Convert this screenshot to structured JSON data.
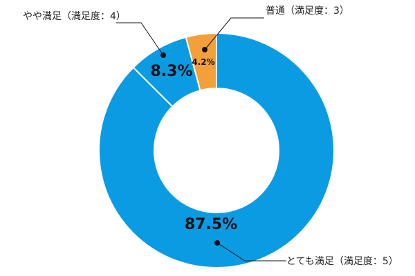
{
  "chart_data": {
    "type": "pie",
    "donut": true,
    "legend": "none",
    "start_angle_deg": 0,
    "direction": "clockwise",
    "slices": [
      {
        "label": "とても満足（満足度：5）",
        "value": 87.5,
        "value_label": "87.5%",
        "color": "#0a9be3"
      },
      {
        "label": "やや満足（満足度：4）",
        "value": 8.3,
        "value_label": "8.3%",
        "color": "#0a9be3"
      },
      {
        "label": "普通（満足度：3）",
        "value": 4.2,
        "value_label": "4.2%",
        "color": "#f4a03a"
      }
    ]
  }
}
